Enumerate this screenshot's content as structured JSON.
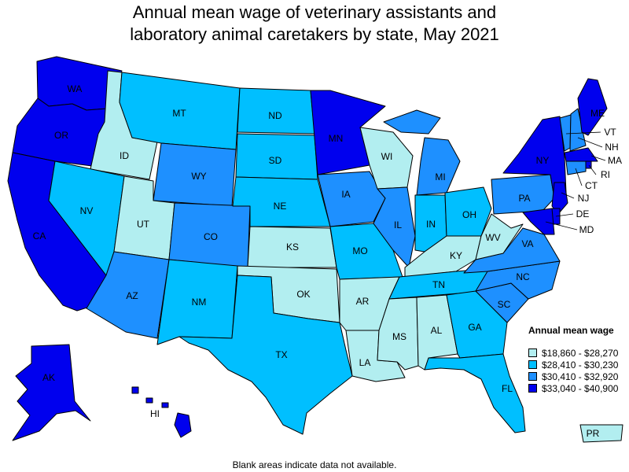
{
  "title": {
    "line1": "Annual mean wage of veterinary assistants and",
    "line2": "laboratory animal caretakers by state, May 2021"
  },
  "legend": {
    "title": "Annual mean wage",
    "items": [
      {
        "label": "$18,860 - $28,270",
        "color": "#b2eef0"
      },
      {
        "label": "$28,410 - $30,230",
        "color": "#00bfff"
      },
      {
        "label": "$30,410 - $32,920",
        "color": "#1e90ff"
      },
      {
        "label": "$33,040 - $40,900",
        "color": "#0000ee"
      }
    ]
  },
  "footnote": "Blank areas indicate data not available.",
  "states": [
    {
      "abbr": "WA",
      "tier": 3
    },
    {
      "abbr": "OR",
      "tier": 3
    },
    {
      "abbr": "CA",
      "tier": 3
    },
    {
      "abbr": "ID",
      "tier": 0
    },
    {
      "abbr": "NV",
      "tier": 1
    },
    {
      "abbr": "MT",
      "tier": 1
    },
    {
      "abbr": "WY",
      "tier": 2
    },
    {
      "abbr": "UT",
      "tier": 0
    },
    {
      "abbr": "AZ",
      "tier": 2
    },
    {
      "abbr": "CO",
      "tier": 2
    },
    {
      "abbr": "NM",
      "tier": 1
    },
    {
      "abbr": "ND",
      "tier": 1
    },
    {
      "abbr": "SD",
      "tier": 1
    },
    {
      "abbr": "NE",
      "tier": 1
    },
    {
      "abbr": "KS",
      "tier": 0
    },
    {
      "abbr": "OK",
      "tier": 0
    },
    {
      "abbr": "TX",
      "tier": 1
    },
    {
      "abbr": "MN",
      "tier": 3
    },
    {
      "abbr": "IA",
      "tier": 2
    },
    {
      "abbr": "MO",
      "tier": 1
    },
    {
      "abbr": "AR",
      "tier": 0
    },
    {
      "abbr": "LA",
      "tier": 0
    },
    {
      "abbr": "WI",
      "tier": 0
    },
    {
      "abbr": "IL",
      "tier": 2
    },
    {
      "abbr": "MI",
      "tier": 2
    },
    {
      "abbr": "IN",
      "tier": 1
    },
    {
      "abbr": "OH",
      "tier": 1
    },
    {
      "abbr": "KY",
      "tier": 0
    },
    {
      "abbr": "TN",
      "tier": 1
    },
    {
      "abbr": "MS",
      "tier": 0
    },
    {
      "abbr": "AL",
      "tier": 0
    },
    {
      "abbr": "GA",
      "tier": 1
    },
    {
      "abbr": "FL",
      "tier": 1
    },
    {
      "abbr": "SC",
      "tier": 2
    },
    {
      "abbr": "NC",
      "tier": 2
    },
    {
      "abbr": "VA",
      "tier": 2
    },
    {
      "abbr": "WV",
      "tier": 0
    },
    {
      "abbr": "PA",
      "tier": 2
    },
    {
      "abbr": "NY",
      "tier": 3
    },
    {
      "abbr": "VT",
      "tier": 2
    },
    {
      "abbr": "NH",
      "tier": 2
    },
    {
      "abbr": "ME",
      "tier": 3
    },
    {
      "abbr": "MA",
      "tier": 3
    },
    {
      "abbr": "RI",
      "tier": 3
    },
    {
      "abbr": "CT",
      "tier": 2
    },
    {
      "abbr": "NJ",
      "tier": 3
    },
    {
      "abbr": "DE",
      "tier": 3
    },
    {
      "abbr": "MD",
      "tier": 3
    },
    {
      "abbr": "AK",
      "tier": 3
    },
    {
      "abbr": "HI",
      "tier": 3
    },
    {
      "abbr": "PR",
      "tier": 0
    }
  ]
}
